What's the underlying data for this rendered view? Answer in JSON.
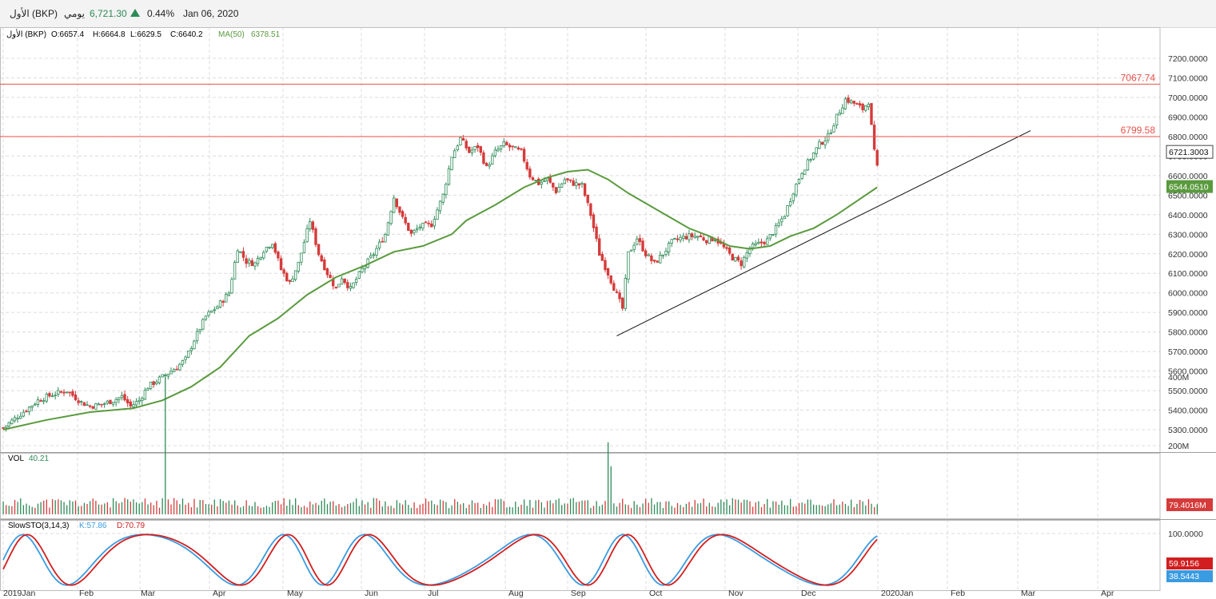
{
  "header": {
    "symbol": "الأول (BKP)",
    "period": "يومي",
    "price": "6,721.30",
    "change_icon": "triangle-up-icon",
    "change_pct": "0.44%",
    "date": "Jan 06, 2020"
  },
  "ohlc": {
    "symbol": "الأول (BKP)",
    "open": "O:6657.4",
    "high": "H:6664.8",
    "low": "L:6629.5",
    "close": "C:6640.2",
    "ma_label": "MA(50)",
    "ma_value": "6378.51"
  },
  "volume_panel": {
    "label": "VOL",
    "value": "40.21"
  },
  "stoch_panel": {
    "label": "SlowSTO(3,14,3)",
    "k": "K:57.86",
    "d": "D:70.79"
  },
  "colors": {
    "up": "#2e8b57",
    "down": "#d63b3b",
    "ma": "#5a9a3e",
    "level": "#e8504a",
    "k_line": "#3a9be0",
    "d_line": "#d21e1e"
  },
  "chart_data": [
    {
      "type": "candlestick",
      "y_ticks": [
        "7200.0000",
        "7100.0000",
        "7000.0000",
        "6900.0000",
        "6800.0000",
        "6700.0000",
        "6600.0000",
        "6500.0000",
        "6400.0000",
        "6300.0000",
        "6200.0000",
        "6100.0000",
        "6000.0000",
        "5900.0000",
        "5800.0000",
        "5700.0000",
        "5600.0000",
        "5500.0000",
        "5400.0000",
        "5300.0000"
      ],
      "ylim": [
        5210,
        7280
      ],
      "x_ticks": [
        "2019Jan",
        "Feb",
        "Mar",
        "Apr",
        "May",
        "Jun",
        "Jul",
        "Aug",
        "Sep",
        "Oct",
        "Nov",
        "Dec",
        "2020Jan",
        "Feb",
        "Mar",
        "Apr"
      ],
      "close_path": [
        [
          0,
          5310
        ],
        [
          6,
          5380
        ],
        [
          12,
          5450
        ],
        [
          17,
          5480
        ],
        [
          22,
          5500
        ],
        [
          27,
          5440
        ],
        [
          30,
          5420
        ],
        [
          34,
          5430
        ],
        [
          38,
          5450
        ],
        [
          41,
          5470
        ],
        [
          44,
          5420
        ],
        [
          47,
          5450
        ],
        [
          50,
          5520
        ],
        [
          54,
          5560
        ],
        [
          57,
          5590
        ],
        [
          60,
          5620
        ],
        [
          63,
          5660
        ],
        [
          66,
          5760
        ],
        [
          70,
          5880
        ],
        [
          74,
          5930
        ],
        [
          78,
          6000
        ],
        [
          81,
          6230
        ],
        [
          84,
          6160
        ],
        [
          87,
          6150
        ],
        [
          90,
          6220
        ],
        [
          93,
          6260
        ],
        [
          96,
          6120
        ],
        [
          99,
          6050
        ],
        [
          102,
          6150
        ],
        [
          106,
          6370
        ],
        [
          109,
          6200
        ],
        [
          112,
          6100
        ],
        [
          115,
          6020
        ],
        [
          117,
          6080
        ],
        [
          120,
          6020
        ],
        [
          124,
          6120
        ],
        [
          128,
          6200
        ],
        [
          132,
          6300
        ],
        [
          135,
          6490
        ],
        [
          138,
          6380
        ],
        [
          141,
          6300
        ],
        [
          144,
          6340
        ],
        [
          148,
          6350
        ],
        [
          152,
          6500
        ],
        [
          155,
          6700
        ],
        [
          158,
          6790
        ],
        [
          161,
          6720
        ],
        [
          164,
          6750
        ],
        [
          167,
          6640
        ],
        [
          170,
          6720
        ],
        [
          173,
          6760
        ],
        [
          176,
          6740
        ],
        [
          179,
          6720
        ],
        [
          182,
          6600
        ],
        [
          185,
          6560
        ],
        [
          188,
          6580
        ],
        [
          191,
          6520
        ],
        [
          194,
          6580
        ],
        [
          197,
          6560
        ],
        [
          200,
          6550
        ],
        [
          203,
          6400
        ],
        [
          206,
          6200
        ],
        [
          209,
          6100
        ],
        [
          212,
          5990
        ],
        [
          214,
          5920
        ],
        [
          216,
          6200
        ],
        [
          219,
          6280
        ],
        [
          222,
          6200
        ],
        [
          225,
          6150
        ],
        [
          228,
          6200
        ],
        [
          231,
          6260
        ],
        [
          234,
          6280
        ],
        [
          237,
          6290
        ],
        [
          240,
          6290
        ],
        [
          243,
          6270
        ],
        [
          246,
          6280
        ],
        [
          249,
          6230
        ],
        [
          252,
          6180
        ],
        [
          255,
          6150
        ],
        [
          258,
          6230
        ],
        [
          261,
          6250
        ],
        [
          264,
          6270
        ],
        [
          267,
          6330
        ],
        [
          270,
          6400
        ],
        [
          273,
          6520
        ],
        [
          276,
          6620
        ],
        [
          279,
          6690
        ],
        [
          282,
          6760
        ],
        [
          285,
          6800
        ],
        [
          288,
          6900
        ],
        [
          291,
          6990
        ],
        [
          294,
          6970
        ],
        [
          297,
          6940
        ],
        [
          299,
          6980
        ],
        [
          301,
          6720
        ],
        [
          302,
          6640
        ]
      ],
      "ma50": [
        [
          0,
          5300
        ],
        [
          15,
          5350
        ],
        [
          30,
          5390
        ],
        [
          45,
          5410
        ],
        [
          55,
          5450
        ],
        [
          65,
          5520
        ],
        [
          75,
          5620
        ],
        [
          85,
          5780
        ],
        [
          95,
          5870
        ],
        [
          105,
          5990
        ],
        [
          115,
          6080
        ],
        [
          125,
          6140
        ],
        [
          135,
          6210
        ],
        [
          145,
          6240
        ],
        [
          155,
          6300
        ],
        [
          160,
          6370
        ],
        [
          170,
          6450
        ],
        [
          180,
          6540
        ],
        [
          188,
          6590
        ],
        [
          195,
          6620
        ],
        [
          202,
          6630
        ],
        [
          209,
          6580
        ],
        [
          216,
          6510
        ],
        [
          223,
          6450
        ],
        [
          230,
          6390
        ],
        [
          237,
          6330
        ],
        [
          244,
          6290
        ],
        [
          251,
          6240
        ],
        [
          258,
          6225
        ],
        [
          265,
          6240
        ],
        [
          272,
          6290
        ],
        [
          280,
          6330
        ],
        [
          288,
          6400
        ],
        [
          295,
          6470
        ],
        [
          302,
          6540
        ]
      ],
      "trendline": [
        [
          212,
          5780
        ],
        [
          355,
          6830
        ]
      ],
      "levels": [
        {
          "value": 7067.74,
          "label": "7067.74"
        },
        {
          "value": 6799.58,
          "label": "6799.58"
        }
      ],
      "last_price_label": "6721.3003",
      "ma_last_label": "6544.0510"
    },
    {
      "type": "bar",
      "name": "VOL",
      "y_ticks": [
        "400M",
        "200M"
      ],
      "last_label": "79.4016M",
      "spike_values_m": [
        [
          56,
          400
        ],
        [
          209,
          210
        ],
        [
          210,
          140
        ]
      ]
    },
    {
      "type": "line",
      "name": "SlowSTO(3,14,3)",
      "y_ticks": [
        "100.0000"
      ],
      "k_last_label": "38.5443",
      "d_last_label": "59.9156"
    }
  ]
}
